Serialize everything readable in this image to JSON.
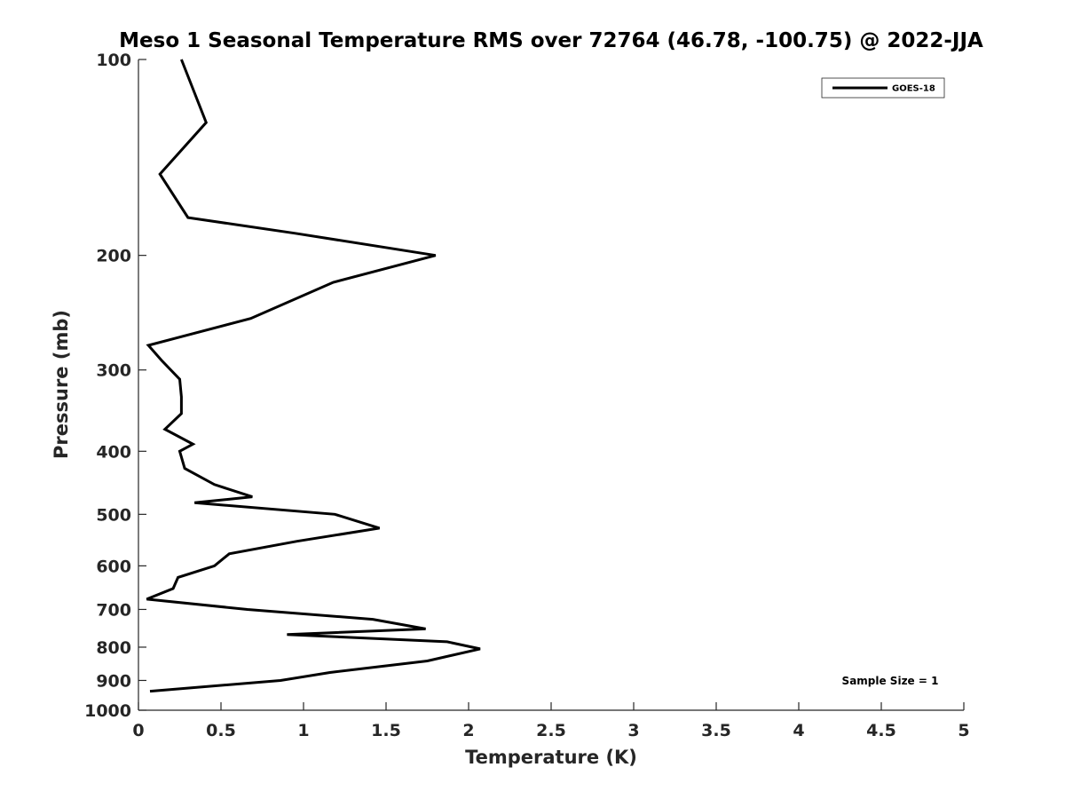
{
  "chart_data": {
    "type": "line",
    "title": "Meso 1 Seasonal Temperature RMS over 72764 (46.78, -100.75) @ 2022-JJA",
    "xlabel": "Temperature (K)",
    "ylabel": "Pressure (mb)",
    "xlim": [
      0,
      5
    ],
    "ylim": [
      100,
      1000
    ],
    "y_scale": "log",
    "y_reversed": true,
    "x_ticks": [
      0,
      0.5,
      1,
      1.5,
      2,
      2.5,
      3,
      3.5,
      4,
      4.5,
      5
    ],
    "x_tick_labels": [
      "0",
      "0.5",
      "1",
      "1.5",
      "2",
      "2.5",
      "3",
      "3.5",
      "4",
      "4.5",
      "5"
    ],
    "y_ticks": [
      100,
      200,
      300,
      400,
      500,
      600,
      700,
      800,
      900,
      1000
    ],
    "y_tick_labels": [
      "100",
      "200",
      "300",
      "400",
      "500",
      "600",
      "700",
      "800",
      "900",
      "1000"
    ],
    "grid": false,
    "legend": {
      "position": "top-right",
      "entries": [
        "GOES-18"
      ]
    },
    "annotation": "Sample Size = 1",
    "series": [
      {
        "name": "GOES-18",
        "color": "#000000",
        "x": [
          0.26,
          0.41,
          0.13,
          0.3,
          0.95,
          1.8,
          1.18,
          0.68,
          0.06,
          0.14,
          0.25,
          0.26,
          0.26,
          0.16,
          0.33,
          0.25,
          0.28,
          0.46,
          0.69,
          0.34,
          1.19,
          1.46,
          0.96,
          0.55,
          0.46,
          0.24,
          0.21,
          0.05,
          0.66,
          1.42,
          1.74,
          0.9,
          1.87,
          2.07,
          1.75,
          1.16,
          0.86,
          0.07
        ],
        "y": [
          100,
          125,
          150,
          175,
          185,
          200,
          220,
          250,
          275,
          290,
          310,
          330,
          350,
          370,
          390,
          400,
          425,
          450,
          470,
          480,
          500,
          525,
          550,
          575,
          600,
          625,
          650,
          675,
          700,
          725,
          750,
          765,
          785,
          805,
          840,
          875,
          900,
          935
        ]
      }
    ]
  }
}
